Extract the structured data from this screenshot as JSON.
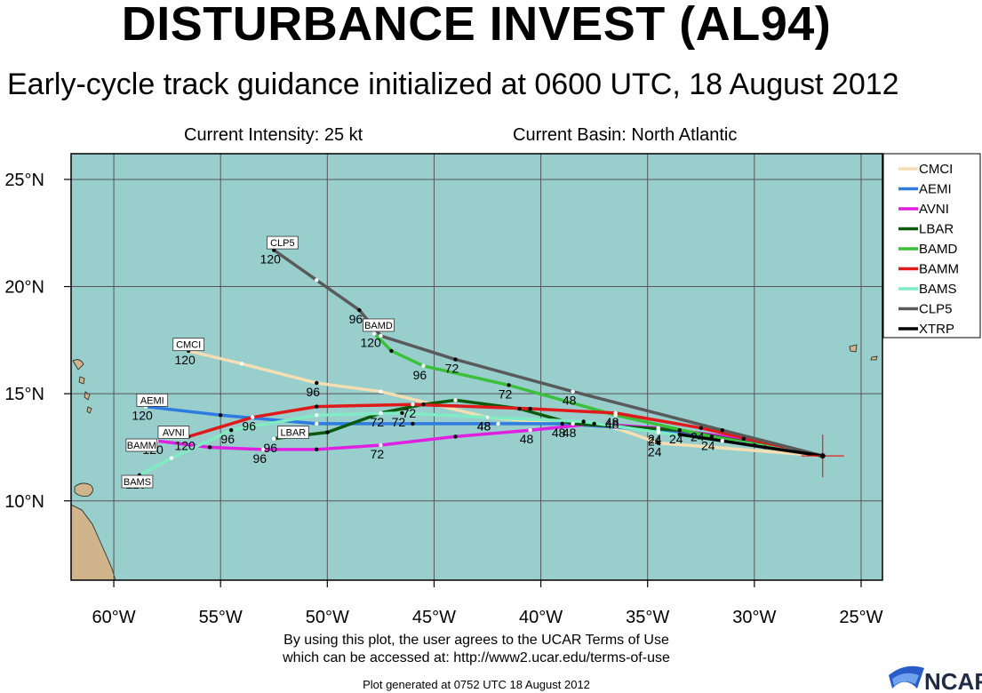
{
  "title": "DISTURBANCE INVEST (AL94)",
  "subtitle": "Early-cycle track guidance initialized at 0600 UTC, 18 August 2012",
  "current_intensity": "Current Intensity: 25 kt",
  "current_basin": "Current Basin: North Atlantic",
  "terms_line1": "By using this plot, the user agrees to the UCAR Terms of Use",
  "terms_line2": "which can be accessed at: http://www2.ucar.edu/terms-of-use",
  "generated": "Plot generated at 0752 UTC   18 August 2012",
  "logo_text": "NCAR",
  "colors": {
    "ocean": "#98cfcd",
    "land": "#cfb48c",
    "grid": "#555555",
    "storm_marker": "#e02020",
    "CMCI": "#f5deb3",
    "AEMI": "#2f7be0",
    "AVNI": "#e020e0",
    "LBAR": "#0a5a0a",
    "BAMD": "#3cc03c",
    "BAMM": "#e01a1a",
    "BAMS": "#80ecc4",
    "CLP5": "#5a5a5a",
    "XTRP": "#000000"
  },
  "chart_data": {
    "type": "line",
    "title": "DISTURBANCE INVEST (AL94)",
    "subtitle": "Early-cycle track guidance initialized at 0600 UTC, 18 August 2012",
    "xlabel": "",
    "ylabel": "",
    "xlim": [
      -62.0,
      -24.0
    ],
    "ylim": [
      6.3,
      26.2
    ],
    "x_ticks": [
      -60,
      -55,
      -50,
      -45,
      -40,
      -35,
      -30,
      -25
    ],
    "x_tick_labels": [
      "60°W",
      "55°W",
      "50°W",
      "45°W",
      "40°W",
      "35°W",
      "30°W",
      "25°W"
    ],
    "y_ticks": [
      10,
      15,
      20,
      25
    ],
    "y_tick_labels": [
      "10°N",
      "15°N",
      "20°N",
      "25°N"
    ],
    "grid": true,
    "legend_position": "right",
    "initial_position": {
      "lon": -26.8,
      "lat": 12.1
    },
    "series": [
      {
        "name": "CMCI",
        "lon": [
          -26.8,
          -34.5,
          -36.5,
          -42.5,
          -47.5,
          -50.5,
          -54,
          -56.5
        ],
        "lat": [
          12.1,
          12.7,
          13.4,
          13.9,
          15.1,
          15.5,
          16.4,
          17.0
        ],
        "labels": [
          {
            "i": 1,
            "text": "24"
          },
          {
            "i": 3,
            "text": "48"
          },
          {
            "i": 5,
            "text": "96"
          },
          {
            "i": 7,
            "text": "120"
          }
        ]
      },
      {
        "name": "AEMI",
        "lon": [
          -26.8,
          -30.5,
          -34.5,
          -39,
          -42,
          -46,
          -50.5,
          -55,
          -58.5
        ],
        "lat": [
          12.1,
          12.9,
          13.3,
          13.6,
          13.6,
          13.6,
          13.6,
          14.0,
          14.4
        ],
        "labels": [
          {
            "i": 2,
            "text": "24"
          },
          {
            "i": 3,
            "text": "48"
          },
          {
            "i": 8,
            "text": "120"
          }
        ]
      },
      {
        "name": "AVNI",
        "lon": [
          -26.8,
          -30.5,
          -34.5,
          -37.5,
          -40.5,
          -44,
          -47.5,
          -50.5,
          -53,
          -55.5,
          -58
        ],
        "lat": [
          12.1,
          12.9,
          13.4,
          13.6,
          13.3,
          13.0,
          12.6,
          12.4,
          12.4,
          12.5,
          12.8
        ],
        "labels": [
          {
            "i": 4,
            "text": "48"
          },
          {
            "i": 6,
            "text": "72"
          },
          {
            "i": 8,
            "text": "96"
          },
          {
            "i": 10,
            "text": "120"
          }
        ]
      },
      {
        "name": "LBAR",
        "lon": [
          -26.8,
          -33.5,
          -38.5,
          -41,
          -44,
          -45.5,
          -47.5,
          -50,
          -52.5
        ],
        "lat": [
          12.1,
          13.3,
          13.6,
          14.3,
          14.7,
          14.5,
          14.1,
          13.2,
          12.9
        ],
        "labels": [
          {
            "i": 1,
            "text": "24"
          },
          {
            "i": 2,
            "text": "48"
          },
          {
            "i": 6,
            "text": "72"
          },
          {
            "i": 8,
            "text": "96"
          }
        ]
      },
      {
        "name": "BAMD",
        "lon": [
          -26.8,
          -32,
          -36.5,
          -41.5,
          -45.5,
          -47,
          -47.8
        ],
        "lat": [
          12.1,
          13.0,
          14.0,
          15.4,
          16.3,
          17.0,
          17.8
        ],
        "labels": [
          {
            "i": 1,
            "text": "24"
          },
          {
            "i": 2,
            "text": "48"
          },
          {
            "i": 3,
            "text": "72"
          },
          {
            "i": 4,
            "text": "96"
          },
          {
            "i": 6,
            "text": "120"
          }
        ]
      },
      {
        "name": "BAMM",
        "lon": [
          -26.8,
          -32.5,
          -36.5,
          -40.5,
          -46,
          -50.5,
          -53.5,
          -56.5
        ],
        "lat": [
          12.1,
          13.4,
          14.1,
          14.3,
          14.5,
          14.4,
          13.9,
          13.0
        ],
        "labels": [
          {
            "i": 1,
            "text": "24"
          },
          {
            "i": 2,
            "text": "48"
          },
          {
            "i": 4,
            "text": "72"
          },
          {
            "i": 6,
            "text": "96"
          },
          {
            "i": 7,
            "text": "120"
          }
        ]
      },
      {
        "name": "BAMS",
        "lon": [
          -26.8,
          -30,
          -34.5,
          -38,
          -42.5,
          -46.5,
          -50.5,
          -54.5,
          -57.3,
          -58.8
        ],
        "lat": [
          12.1,
          12.6,
          13.2,
          13.7,
          13.9,
          14.1,
          14.0,
          13.3,
          12.0,
          11.2
        ],
        "labels": [
          {
            "i": 2,
            "text": "24"
          },
          {
            "i": 4,
            "text": "48"
          },
          {
            "i": 5,
            "text": "72"
          },
          {
            "i": 7,
            "text": "96"
          },
          {
            "i": 9,
            "text": "120"
          }
        ]
      },
      {
        "name": "CLP5",
        "lon": [
          -26.8,
          -31.5,
          -38.5,
          -44,
          -47.5,
          -48.5,
          -50.5,
          -52.5
        ],
        "lat": [
          12.1,
          13.3,
          15.1,
          16.6,
          17.7,
          18.9,
          20.3,
          21.7
        ],
        "labels": [
          {
            "i": 2,
            "text": "48"
          },
          {
            "i": 3,
            "text": "72"
          },
          {
            "i": 5,
            "text": "96"
          },
          {
            "i": 7,
            "text": "120"
          }
        ]
      },
      {
        "name": "XTRP",
        "lon": [
          -26.8,
          -29.5,
          -31.5,
          -33.5
        ],
        "lat": [
          12.1,
          12.5,
          12.8,
          13.1
        ],
        "labels": []
      }
    ],
    "end_boxes": [
      {
        "text": "CLP5",
        "lon": -52.1,
        "lat": 22.05
      },
      {
        "text": "BAMD",
        "lon": -47.6,
        "lat": 18.2
      },
      {
        "text": "CMCI",
        "lon": -56.5,
        "lat": 17.3
      },
      {
        "text": "AEMI",
        "lon": -58.2,
        "lat": 14.7
      },
      {
        "text": "AVNI",
        "lon": -57.2,
        "lat": 13.2
      },
      {
        "text": "LBAR",
        "lon": -51.6,
        "lat": 13.2
      },
      {
        "text": "BAMM",
        "lon": -58.7,
        "lat": 12.6
      },
      {
        "text": "BAMS",
        "lon": -58.9,
        "lat": 10.9
      }
    ]
  }
}
